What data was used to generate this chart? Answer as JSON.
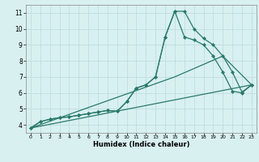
{
  "xlabel": "Humidex (Indice chaleur)",
  "bg_color": "#d8f0f0",
  "grid_color": "#c0dede",
  "line_color": "#2a7a6a",
  "xlim": [
    -0.5,
    23.5
  ],
  "ylim": [
    3.5,
    11.5
  ],
  "xticks": [
    0,
    1,
    2,
    3,
    4,
    5,
    6,
    7,
    8,
    9,
    10,
    11,
    12,
    13,
    14,
    15,
    16,
    17,
    18,
    19,
    20,
    21,
    22,
    23
  ],
  "yticks": [
    4,
    5,
    6,
    7,
    8,
    9,
    10,
    11
  ],
  "series": [
    {
      "x": [
        0,
        1,
        2,
        3,
        4,
        5,
        6,
        7,
        8,
        9,
        10,
        11,
        12,
        13,
        14,
        15,
        16,
        17,
        18,
        19,
        20,
        21,
        22,
        23
      ],
      "y": [
        3.8,
        4.2,
        4.35,
        4.45,
        4.5,
        4.6,
        4.7,
        4.8,
        4.9,
        4.85,
        5.45,
        6.3,
        6.5,
        7.0,
        9.5,
        11.1,
        11.1,
        10.0,
        9.4,
        9.0,
        8.3,
        7.3,
        6.05,
        6.5
      ],
      "marker": "D",
      "markersize": 2.0,
      "linewidth": 0.9
    },
    {
      "x": [
        0,
        1,
        2,
        3,
        4,
        5,
        6,
        7,
        8,
        9,
        10,
        11,
        12,
        13,
        14,
        15,
        16,
        17,
        18,
        19,
        20,
        21,
        22,
        23
      ],
      "y": [
        3.8,
        4.2,
        4.35,
        4.45,
        4.5,
        4.6,
        4.7,
        4.8,
        4.9,
        4.85,
        5.45,
        6.3,
        6.5,
        7.0,
        9.5,
        11.1,
        9.5,
        9.3,
        9.0,
        8.3,
        7.3,
        6.1,
        6.0,
        6.5
      ],
      "marker": "D",
      "markersize": 2.0,
      "linewidth": 0.9
    },
    {
      "x": [
        0,
        23
      ],
      "y": [
        3.8,
        6.5
      ],
      "marker": null,
      "markersize": 0,
      "linewidth": 0.9
    },
    {
      "x": [
        0,
        15,
        20,
        23
      ],
      "y": [
        3.8,
        7.0,
        8.3,
        6.5
      ],
      "marker": null,
      "markersize": 0,
      "linewidth": 0.9
    }
  ]
}
